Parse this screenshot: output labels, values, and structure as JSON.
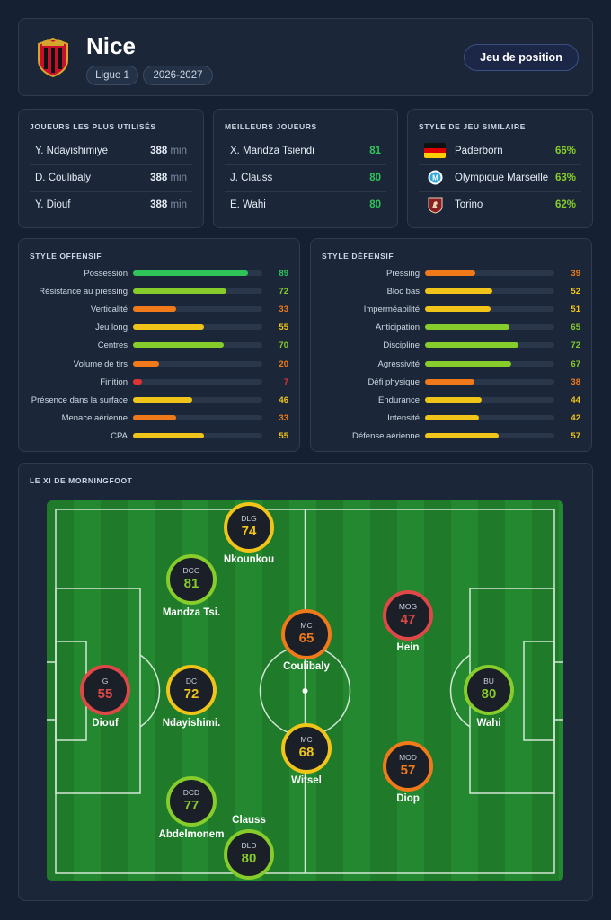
{
  "header": {
    "team": "Nice",
    "league": "Ligue 1",
    "season": "2026-2027",
    "button": "Jeu de position"
  },
  "most_used": {
    "title": "JOUEURS LES PLUS UTILISÉS",
    "rows": [
      {
        "name": "Y. Ndayishimiye",
        "value": "388",
        "unit": "min"
      },
      {
        "name": "D. Coulibaly",
        "value": "388",
        "unit": "min"
      },
      {
        "name": "Y. Diouf",
        "value": "388",
        "unit": "min"
      }
    ]
  },
  "best_players": {
    "title": "MEILLEURS JOUEURS",
    "rows": [
      {
        "name": "X. Mandza Tsiendi",
        "value": "81"
      },
      {
        "name": "J. Clauss",
        "value": "80"
      },
      {
        "name": "E. Wahi",
        "value": "80"
      }
    ]
  },
  "similar": {
    "title": "STYLE DE JEU SIMILAIRE",
    "rows": [
      {
        "name": "Paderborn",
        "value": "66%",
        "icon": "germany-flag-icon"
      },
      {
        "name": "Olympique Marseille",
        "value": "63%",
        "icon": "marseille-crest-icon"
      },
      {
        "name": "Torino",
        "value": "62%",
        "icon": "torino-crest-icon"
      }
    ]
  },
  "offensive": {
    "title": "STYLE OFFENSIF",
    "items": [
      {
        "label": "Possession",
        "value": 89,
        "color": "#2ec45a"
      },
      {
        "label": "Résistance au pressing",
        "value": 72,
        "color": "#86cc2a"
      },
      {
        "label": "Verticalité",
        "value": 33,
        "color": "#f07a1a"
      },
      {
        "label": "Jeu long",
        "value": 55,
        "color": "#f0c419"
      },
      {
        "label": "Centres",
        "value": 70,
        "color": "#86cc2a"
      },
      {
        "label": "Volume de tirs",
        "value": 20,
        "color": "#f07a1a"
      },
      {
        "label": "Finition",
        "value": 7,
        "color": "#e03434"
      },
      {
        "label": "Présence dans la surface",
        "value": 46,
        "color": "#f0c419"
      },
      {
        "label": "Menace aérienne",
        "value": 33,
        "color": "#f07a1a"
      },
      {
        "label": "CPA",
        "value": 55,
        "color": "#f0c419"
      }
    ]
  },
  "defensive": {
    "title": "STYLE DÉFENSIF",
    "items": [
      {
        "label": "Pressing",
        "value": 39,
        "color": "#f07a1a"
      },
      {
        "label": "Bloc bas",
        "value": 52,
        "color": "#f0c419"
      },
      {
        "label": "Imperméabilité",
        "value": 51,
        "color": "#f0c419"
      },
      {
        "label": "Anticipation",
        "value": 65,
        "color": "#86cc2a"
      },
      {
        "label": "Discipline",
        "value": 72,
        "color": "#86cc2a"
      },
      {
        "label": "Agressivité",
        "value": 67,
        "color": "#86cc2a"
      },
      {
        "label": "Défi physique",
        "value": 38,
        "color": "#f07a1a"
      },
      {
        "label": "Endurance",
        "value": 44,
        "color": "#f0c419"
      },
      {
        "label": "Intensité",
        "value": 42,
        "color": "#f0c419"
      },
      {
        "label": "Défense aérienne",
        "value": 57,
        "color": "#f0c419"
      }
    ]
  },
  "xi": {
    "title": "LE XI DE MORNINGFOOT",
    "players": [
      {
        "pos": "DLG",
        "rating": "74",
        "name": "Nkounkou",
        "color": "#f0c419"
      },
      {
        "pos": "DCG",
        "rating": "81",
        "name": "Mandza Tsi.",
        "color": "#86cc2a"
      },
      {
        "pos": "MC",
        "rating": "65",
        "name": "Coulibaly",
        "color": "#f07a1a"
      },
      {
        "pos": "MOG",
        "rating": "47",
        "name": "Hein",
        "color": "#e04848"
      },
      {
        "pos": "G",
        "rating": "55",
        "name": "Diouf",
        "color": "#e04848"
      },
      {
        "pos": "DC",
        "rating": "72",
        "name": "Ndayishimi.",
        "color": "#f0c419"
      },
      {
        "pos": "BU",
        "rating": "80",
        "name": "Wahi",
        "color": "#86cc2a"
      },
      {
        "pos": "MC",
        "rating": "68",
        "name": "Witsel",
        "color": "#f0c419"
      },
      {
        "pos": "MOD",
        "rating": "57",
        "name": "Diop",
        "color": "#f07a1a"
      },
      {
        "pos": "DCD",
        "rating": "77",
        "name": "Abdelmonem",
        "color": "#86cc2a"
      },
      {
        "pos": "DLD",
        "rating": "80",
        "name": "Clauss",
        "color": "#86cc2a"
      }
    ]
  }
}
